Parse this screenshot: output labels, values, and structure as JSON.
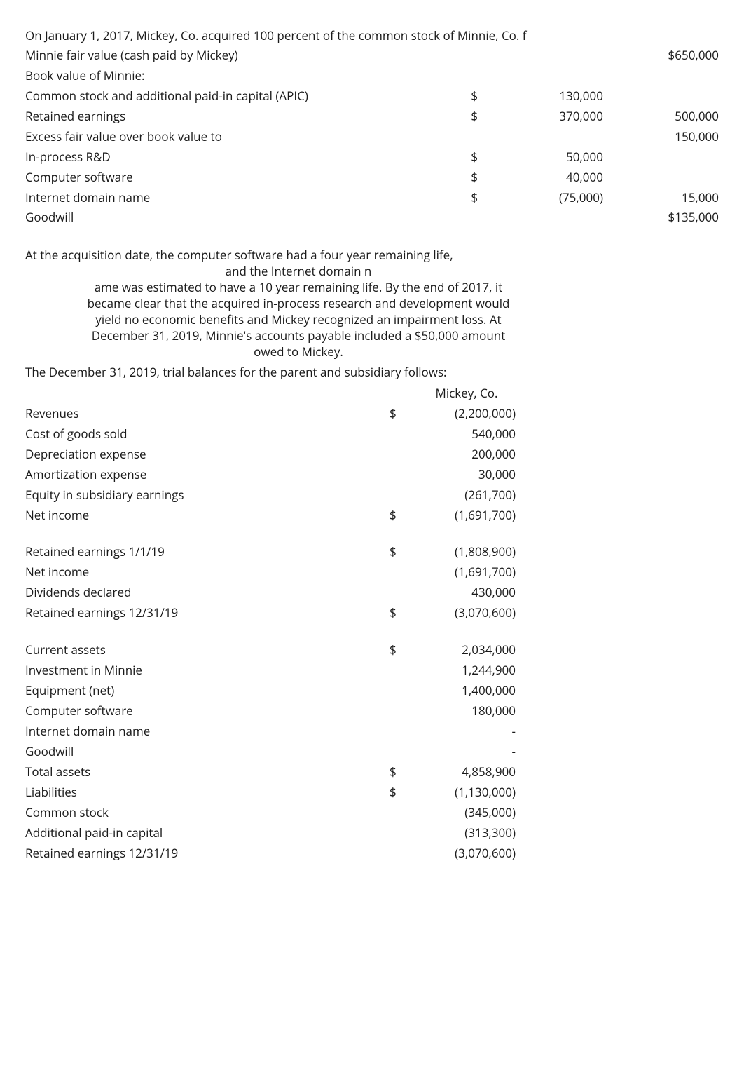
{
  "intro": {
    "line1": "On January 1, 2017, Mickey, Co. acquired 100 percent of the common stock of Minnie, Co. f",
    "fv_label": "Minnie fair value (cash paid by Mickey)",
    "fv_amount": "$650,000",
    "bv_label": "Book value of Minnie:",
    "rows": [
      {
        "label": "Common stock and additional paid-in capital (APIC)",
        "cur": "$",
        "amt": "130,000",
        "tot": ""
      },
      {
        "label": "Retained earnings",
        "cur": "$",
        "amt": "370,000",
        "tot": "500,000"
      }
    ],
    "excess_label": "Excess fair value over book value to",
    "excess_tot": "150,000",
    "alloc": [
      {
        "label": "In-process R&D",
        "cur": "$",
        "amt": "50,000",
        "tot": ""
      },
      {
        "label": "Computer software",
        "cur": "$",
        "amt": "40,000",
        "tot": ""
      },
      {
        "label": "Internet domain name",
        "cur": "$",
        "amt": "(75,000)",
        "tot": "15,000"
      },
      {
        "label": "Goodwill",
        "cur": "",
        "amt": "",
        "tot": "$135,000"
      }
    ]
  },
  "narrative": {
    "p1a": "At the acquisition date, the computer software had a four year remaining life,",
    "p1b": "and the Internet domain n",
    "p2a": "ame was estimated to have a 10 year remaining life. By the end of 2017, it",
    "p2b": "became clear that the acquired in-process research and development would",
    "p2c": "yield no economic benefits and Mickey recognized an impairment loss. At",
    "p2d": "December 31, 2019, Minnie's accounts payable included a $50,000 amount",
    "p2e": "owed to Mickey.",
    "p3": "The December 31, 2019, trial balances for the parent and subsidiary follows:"
  },
  "tb": {
    "header": "Mickey, Co.",
    "rows": [
      {
        "label": "Revenues",
        "cur": "$",
        "amt": "(2,200,000)",
        "indent": false
      },
      {
        "label": "Cost of goods sold",
        "cur": "",
        "amt": "540,000",
        "indent": false
      },
      {
        "label": "Depreciation expense",
        "cur": "",
        "amt": "200,000",
        "indent": false
      },
      {
        "label": "Amortization expense",
        "cur": "",
        "amt": "30,000",
        "indent": false
      },
      {
        "label": "Equity in subsidiary earnings",
        "cur": "",
        "amt": "(261,700)",
        "indent": false
      },
      {
        "label": "Net income",
        "cur": "$",
        "amt": "(1,691,700)",
        "indent": true
      },
      {
        "spacer": true
      },
      {
        "label": "Retained earnings 1/1/19",
        "cur": "$",
        "amt": "(1,808,900)",
        "indent": false
      },
      {
        "label": "Net income",
        "cur": "",
        "amt": "(1,691,700)",
        "indent": false
      },
      {
        "label": "Dividends declared",
        "cur": "",
        "amt": "430,000",
        "indent": false
      },
      {
        "label": "Retained earnings 12/31/19",
        "cur": "$",
        "amt": "(3,070,600)",
        "indent": true
      },
      {
        "spacer": true
      },
      {
        "label": "Current assets",
        "cur": "$",
        "amt": "2,034,000",
        "indent": false
      },
      {
        "label": "Investment in Minnie",
        "cur": "",
        "amt": "1,244,900",
        "indent": false
      },
      {
        "label": "Equipment (net)",
        "cur": "",
        "amt": "1,400,000",
        "indent": false
      },
      {
        "label": "Computer software",
        "cur": "",
        "amt": "180,000",
        "indent": false
      },
      {
        "label": "Internet domain name",
        "cur": "",
        "amt": "-",
        "indent": false
      },
      {
        "label": "Goodwill",
        "cur": "",
        "amt": "-",
        "indent": false
      },
      {
        "label": "Total assets",
        "cur": "$",
        "amt": "4,858,900",
        "indent": true
      },
      {
        "label": "Liabilities",
        "cur": "$",
        "amt": "(1,130,000)",
        "indent": false
      },
      {
        "label": "Common stock",
        "cur": "",
        "amt": "(345,000)",
        "indent": false
      },
      {
        "label": "Additional paid-in capital",
        "cur": "",
        "amt": "(313,300)",
        "indent": false
      },
      {
        "label": "Retained earnings 12/31/19",
        "cur": "",
        "amt": "(3,070,600)",
        "indent": false
      }
    ]
  }
}
